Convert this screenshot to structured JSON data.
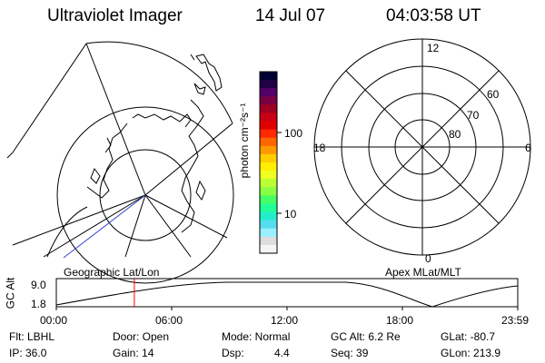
{
  "header": {
    "instrument": "Ultraviolet Imager",
    "date": "14 Jul 07",
    "time": "04:03:58 UT"
  },
  "colorbar": {
    "unit_label": "photon cm⁻²s⁻¹",
    "ticks": [
      "100",
      "10"
    ],
    "colors": [
      "#000033",
      "#220044",
      "#550066",
      "#7a0044",
      "#a00022",
      "#c80014",
      "#e00000",
      "#ff2a00",
      "#ff6600",
      "#ff9900",
      "#ffcc00",
      "#ffee00",
      "#eeff22",
      "#bbff33",
      "#88ff44",
      "#44ff66",
      "#22ff99",
      "#22eecc",
      "#55ddee",
      "#99eeff",
      "#dddddd",
      "#f4f4f4"
    ]
  },
  "left_panel": {
    "label": "Geographic Lat/Lon"
  },
  "right_panel": {
    "label": "Apex MLat/MLT",
    "mlt_labels": [
      "12",
      "18",
      "6",
      "0"
    ],
    "lat_labels": [
      "60",
      "70",
      "80"
    ]
  },
  "altitude_plot": {
    "ylabel": "GC Alt",
    "ytick_top": "9.0",
    "ytick_bottom": "1.8",
    "xticks": [
      "00:00",
      "06:00",
      "12:00",
      "18:00",
      "23:59"
    ],
    "current_time_fraction": 0.169,
    "marker_color": "#ff0000"
  },
  "footer": {
    "row1": [
      "Flt: LBHL",
      "Door: Open",
      "Mode: Normal",
      "GC Alt: 6.2 Re",
      "GLat: -80.7"
    ],
    "row2": [
      "IP: 36.0",
      "Gain: 14",
      "Dsp:",
      "4.4",
      "Seq: 39",
      "GLon: 213.9"
    ]
  }
}
